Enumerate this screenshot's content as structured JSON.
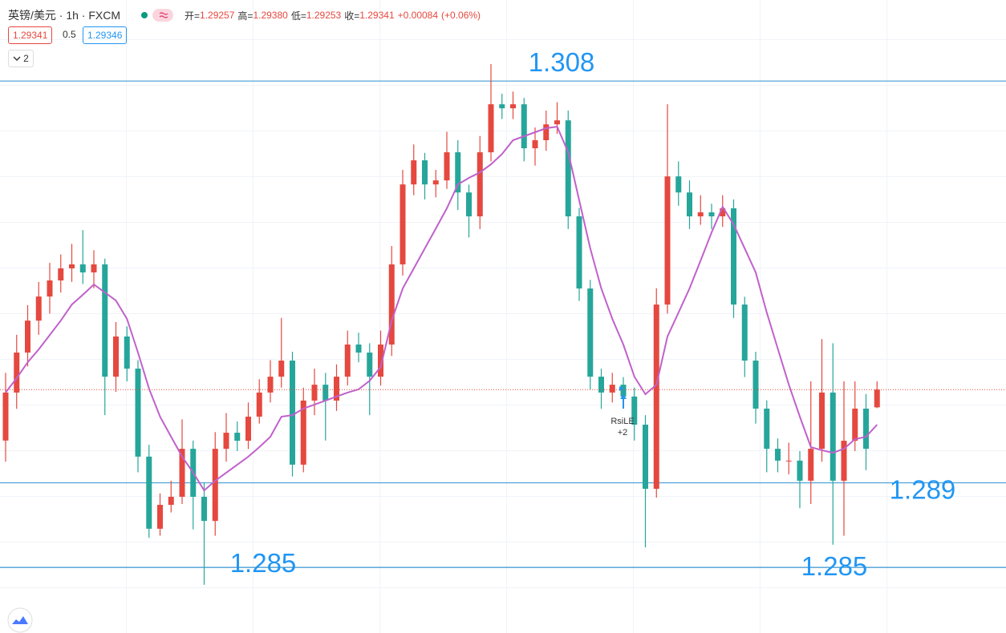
{
  "header": {
    "symbol": "英镑/美元 · 1h · FXCM",
    "open_label": "开=",
    "open": "1.29257",
    "high_label": "高=",
    "high": "1.29380",
    "low_label": "低=",
    "low": "1.29253",
    "close_label": "收=",
    "close": "1.29341",
    "change": "+0.00084",
    "change_pct": "(+0.06%)",
    "bid": "1.29341",
    "spread": "0.5",
    "ask": "1.29346",
    "collapse": "2"
  },
  "chart_data": {
    "type": "candlestick",
    "up_color": "#e5483f",
    "down_color": "#26a69a",
    "ylim": [
      1.2819,
      1.31183
    ],
    "candles": [
      [
        1.291,
        1.2942,
        1.29,
        1.29327
      ],
      [
        1.29327,
        1.296,
        1.2925,
        1.29516
      ],
      [
        1.29516,
        1.2974,
        1.2945,
        1.29667
      ],
      [
        1.29667,
        1.2985,
        1.296,
        1.29781
      ],
      [
        1.29781,
        1.2994,
        1.297,
        1.29857
      ],
      [
        1.29857,
        1.2998,
        1.298,
        1.29914
      ],
      [
        1.29914,
        1.3003,
        1.2985,
        1.29933
      ],
      [
        1.29933,
        1.30095,
        1.2984,
        1.29895
      ],
      [
        1.29895,
        1.3,
        1.2982,
        1.29933
      ],
      [
        1.29933,
        1.2996,
        1.2922,
        1.29402
      ],
      [
        1.29402,
        1.2966,
        1.2933,
        1.29592
      ],
      [
        1.29592,
        1.2964,
        1.2938,
        1.2944
      ],
      [
        1.2944,
        1.2948,
        1.2895,
        1.29024
      ],
      [
        1.29024,
        1.2908,
        1.2864,
        1.28683
      ],
      [
        1.28683,
        1.2885,
        1.2865,
        1.28796
      ],
      [
        1.28796,
        1.2891,
        1.2876,
        1.28834
      ],
      [
        1.28834,
        1.292,
        1.288,
        1.29061
      ],
      [
        1.29061,
        1.291,
        1.2868,
        1.28834
      ],
      [
        1.28834,
        1.289,
        1.28418,
        1.2872
      ],
      [
        1.2872,
        1.2914,
        1.2865,
        1.29061
      ],
      [
        1.29061,
        1.2923,
        1.29,
        1.29137
      ],
      [
        1.29137,
        1.2919,
        1.2905,
        1.29099
      ],
      [
        1.29099,
        1.2928,
        1.2906,
        1.29213
      ],
      [
        1.29213,
        1.2939,
        1.2918,
        1.29327
      ],
      [
        1.29327,
        1.2948,
        1.2928,
        1.29402
      ],
      [
        1.29402,
        1.2968,
        1.2935,
        1.29478
      ],
      [
        1.29478,
        1.2952,
        1.2893,
        1.28986
      ],
      [
        1.28986,
        1.2935,
        1.2895,
        1.29289
      ],
      [
        1.29289,
        1.2944,
        1.2922,
        1.29364
      ],
      [
        1.29364,
        1.2942,
        1.291,
        1.29289
      ],
      [
        1.29289,
        1.2946,
        1.2924,
        1.29402
      ],
      [
        1.29402,
        1.2962,
        1.2936,
        1.29554
      ],
      [
        1.29554,
        1.2961,
        1.2947,
        1.29516
      ],
      [
        1.29516,
        1.2956,
        1.2922,
        1.29402
      ],
      [
        1.29402,
        1.2962,
        1.2936,
        1.29554
      ],
      [
        1.29554,
        1.3002,
        1.295,
        1.29933
      ],
      [
        1.29933,
        1.3038,
        1.2988,
        1.30311
      ],
      [
        1.30311,
        1.305,
        1.3026,
        1.30425
      ],
      [
        1.30425,
        1.3046,
        1.3024,
        1.30311
      ],
      [
        1.30311,
        1.3038,
        1.3025,
        1.3033
      ],
      [
        1.3033,
        1.3056,
        1.3029,
        1.30463
      ],
      [
        1.30463,
        1.3052,
        1.3019,
        1.30273
      ],
      [
        1.30273,
        1.3031,
        1.3006,
        1.3016
      ],
      [
        1.3016,
        1.3054,
        1.301,
        1.30463
      ],
      [
        1.30463,
        1.3088,
        1.3042,
        1.3069
      ],
      [
        1.3069,
        1.3074,
        1.3062,
        1.30671
      ],
      [
        1.30671,
        1.3075,
        1.3062,
        1.3069
      ],
      [
        1.3069,
        1.3072,
        1.3042,
        1.30482
      ],
      [
        1.30482,
        1.3058,
        1.304,
        1.3052
      ],
      [
        1.3052,
        1.3066,
        1.3047,
        1.30595
      ],
      [
        1.30595,
        1.307,
        1.3055,
        1.30614
      ],
      [
        1.30614,
        1.3066,
        1.301,
        1.3016
      ],
      [
        1.3016,
        1.302,
        1.2976,
        1.29819
      ],
      [
        1.29819,
        1.2986,
        1.2934,
        1.29402
      ],
      [
        1.29402,
        1.2944,
        1.2925,
        1.29327
      ],
      [
        1.29327,
        1.2942,
        1.2928,
        1.29364
      ],
      [
        1.29364,
        1.294,
        1.2926,
        1.29308
      ],
      [
        1.29308,
        1.2935,
        1.291,
        1.29175
      ],
      [
        1.29175,
        1.2922,
        1.28595,
        1.28872
      ],
      [
        1.28872,
        1.2982,
        1.2883,
        1.29743
      ],
      [
        1.29743,
        1.3069,
        1.297,
        1.30349
      ],
      [
        1.30349,
        1.3042,
        1.3021,
        1.30273
      ],
      [
        1.30273,
        1.3033,
        1.301,
        1.3016
      ],
      [
        1.3016,
        1.3026,
        1.3012,
        1.30179
      ],
      [
        1.30179,
        1.3022,
        1.301,
        1.3016
      ],
      [
        1.3016,
        1.3026,
        1.3011,
        1.30198
      ],
      [
        1.30198,
        1.3024,
        1.2968,
        1.29743
      ],
      [
        1.29743,
        1.2978,
        1.294,
        1.29478
      ],
      [
        1.29478,
        1.2952,
        1.2918,
        1.29251
      ],
      [
        1.29251,
        1.2929,
        1.2895,
        1.29061
      ],
      [
        1.29061,
        1.2911,
        1.2895,
        1.29005
      ],
      [
        1.29005,
        1.2909,
        1.2894,
        1.29005
      ],
      [
        1.29005,
        1.2905,
        1.2878,
        1.2891
      ],
      [
        1.2891,
        1.2938,
        1.288,
        1.29061
      ],
      [
        1.29061,
        1.2958,
        1.29,
        1.29327
      ],
      [
        1.29327,
        1.2956,
        1.28607,
        1.2891
      ],
      [
        1.2891,
        1.2938,
        1.2865,
        1.29099
      ],
      [
        1.29099,
        1.2938,
        1.2905,
        1.29251
      ],
      [
        1.29251,
        1.2932,
        1.2896,
        1.29061
      ],
      [
        1.29257,
        1.2938,
        1.29253,
        1.29341
      ]
    ],
    "ma": {
      "color": "#c061cb",
      "values": [
        1.29327,
        1.29395,
        1.2947,
        1.29531,
        1.29599,
        1.29667,
        1.29743,
        1.29789,
        1.29838,
        1.298,
        1.29762,
        1.29675,
        1.29516,
        1.29345,
        1.29213,
        1.29118,
        1.29024,
        1.28948,
        1.28864,
        1.2891,
        1.28948,
        1.28986,
        1.29024,
        1.29069,
        1.29118,
        1.29213,
        1.2922,
        1.29251,
        1.2927,
        1.29289,
        1.29308,
        1.29327,
        1.29342,
        1.29383,
        1.29448,
        1.29667,
        1.29819,
        1.29914,
        1.30008,
        1.30103,
        1.30198,
        1.30311,
        1.30342,
        1.30368,
        1.30406,
        1.30455,
        1.3052,
        1.30539,
        1.30558,
        1.30577,
        1.30584,
        1.30463,
        1.30236,
        1.30008,
        1.29819,
        1.29675,
        1.29554,
        1.29402,
        1.29319,
        1.29364,
        1.29592,
        1.29705,
        1.29819,
        1.29951,
        1.30084,
        1.30205,
        1.30122,
        1.30008,
        1.29895,
        1.29705,
        1.29535,
        1.29364,
        1.29213,
        1.29069,
        1.29054,
        1.29042,
        1.29061,
        1.29107,
        1.29118,
        1.29175
      ]
    },
    "levels": [
      1.308,
      1.289,
      1.285,
      1.285
    ],
    "level_color": "#2b8fcf",
    "label_color": "#2196f3",
    "signal": {
      "label": "RsiLE",
      "count": "+2"
    }
  }
}
